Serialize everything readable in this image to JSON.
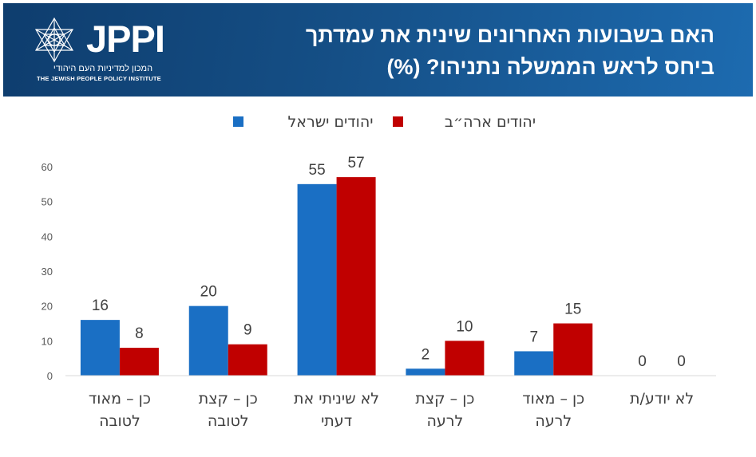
{
  "banner": {
    "title_lines": [
      "האם בשבועות האחרונים שינית את עמדתך",
      "ביחס לראש הממשלה נתניהו? (%)"
    ],
    "logo_text": "JPPI",
    "logo_hebrew": "המכון למדיניות העם היהודי",
    "logo_english": "THE JEWISH PEOPLE POLICY INSTITUTE"
  },
  "chart_data": {
    "type": "bar",
    "categories": [
      [
        "כן – מאוד",
        "לטובה"
      ],
      [
        "כן – קצת",
        "לטובה"
      ],
      [
        "לא שיניתי את",
        "דעתי"
      ],
      [
        "כן – קצת",
        "לרעה"
      ],
      [
        "כן – מאוד",
        "לרעה"
      ],
      [
        "לא יודע/ת"
      ]
    ],
    "series": [
      {
        "name": "יהודים ישראל",
        "color": "#1a6fc4",
        "values": [
          16,
          20,
          55,
          2,
          7,
          0
        ]
      },
      {
        "name": "יהודים ארה״ב",
        "color": "#c00000",
        "values": [
          8,
          9,
          57,
          10,
          15,
          0
        ]
      }
    ],
    "ylim": [
      0,
      60
    ],
    "yticks": [
      0,
      10,
      20,
      30,
      40,
      50,
      60
    ],
    "grid": false,
    "legend_position": "top"
  }
}
